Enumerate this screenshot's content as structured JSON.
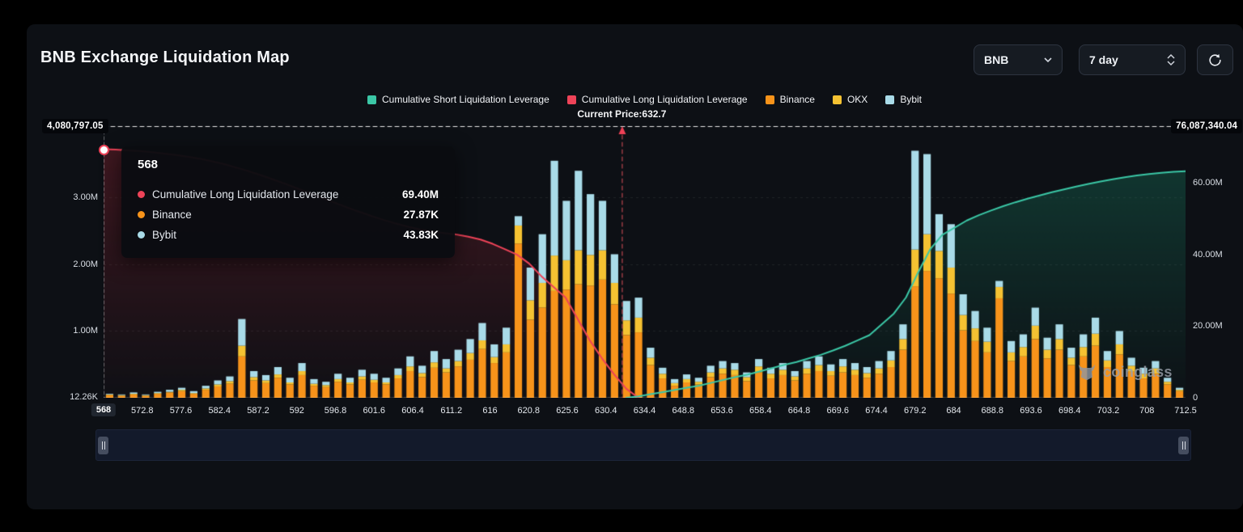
{
  "header": {
    "title": "BNB Exchange Liquidation Map"
  },
  "controls": {
    "symbol_value": "BNB",
    "timeframe_value": "7 day"
  },
  "legend": [
    {
      "label": "Cumulative Short Liquidation Leverage",
      "color": "#3bc7a6"
    },
    {
      "label": "Cumulative Long Liquidation Leverage",
      "color": "#ee4358"
    },
    {
      "label": "Binance",
      "color": "#f7931a"
    },
    {
      "label": "OKX",
      "color": "#f5c232"
    },
    {
      "label": "Bybit",
      "color": "#a9dbe8"
    }
  ],
  "current_price": {
    "label": "Current Price:632.7",
    "value": 632.7
  },
  "tooltip": {
    "title": "568",
    "rows": [
      {
        "label": "Cumulative Long Liquidation Leverage",
        "value": "69.40M",
        "color": "#ee4358"
      },
      {
        "label": "Binance",
        "value": "27.87K",
        "color": "#f7931a"
      },
      {
        "label": "Bybit",
        "value": "43.83K",
        "color": "#a9dbe8"
      }
    ]
  },
  "watermark": "coinglass",
  "chart_data": {
    "type": "bar",
    "title": "BNB Exchange Liquidation Map",
    "current_price_fraction": 0.479,
    "x_labels": [
      "568",
      "572.8",
      "577.6",
      "582.4",
      "587.2",
      "592",
      "596.8",
      "601.6",
      "606.4",
      "611.2",
      "616",
      "620.8",
      "625.6",
      "630.4",
      "634.4",
      "648.8",
      "653.6",
      "658.4",
      "664.8",
      "669.6",
      "674.4",
      "679.2",
      "684",
      "688.8",
      "693.6",
      "698.4",
      "703.2",
      "708",
      "712.5"
    ],
    "left_axis": {
      "max": 4.0808,
      "max_label": "4,080,797.05",
      "units": "M",
      "ticks": [
        {
          "value": 3.0,
          "label": "3.00M"
        },
        {
          "value": 2.0,
          "label": "2.00M"
        },
        {
          "value": 1.0,
          "label": "1.00M"
        },
        {
          "value": 0.01226,
          "label": "12.26K"
        }
      ]
    },
    "right_axis": {
      "max": 76.087,
      "max_label": "76,087,340.04",
      "units": "M",
      "ticks": [
        {
          "value": 60,
          "label": "60.00M"
        },
        {
          "value": 40,
          "label": "40.00M"
        },
        {
          "value": 20,
          "label": "20.00M"
        },
        {
          "value": 0,
          "label": "0"
        }
      ]
    },
    "bars": {
      "stack_order": [
        "binance",
        "okx",
        "bybit"
      ],
      "colors": {
        "binance": "#f7931a",
        "okx": "#f5c232",
        "bybit": "#a9dbe8"
      },
      "binance": [
        0.04,
        0.03,
        0.05,
        0.03,
        0.06,
        0.08,
        0.1,
        0.06,
        0.12,
        0.17,
        0.21,
        0.62,
        0.26,
        0.22,
        0.3,
        0.2,
        0.34,
        0.18,
        0.16,
        0.24,
        0.2,
        0.27,
        0.23,
        0.2,
        0.29,
        0.4,
        0.31,
        0.45,
        0.38,
        0.47,
        0.57,
        0.73,
        0.52,
        0.68,
        2.31,
        1.17,
        1.35,
        1.6,
        1.62,
        1.7,
        1.68,
        1.77,
        1.4,
        0.94,
        0.98,
        0.49,
        0.29,
        0.18,
        0.23,
        0.2,
        0.31,
        0.36,
        0.34,
        0.25,
        0.38,
        0.29,
        0.34,
        0.26,
        0.36,
        0.4,
        0.33,
        0.38,
        0.34,
        0.3,
        0.36,
        0.46,
        0.72,
        1.67,
        1.9,
        1.79,
        1.56,
        1.01,
        0.85,
        0.68,
        1.49,
        0.55,
        0.62,
        0.88,
        0.59,
        0.72,
        0.49,
        0.62,
        0.78,
        0.46,
        0.65,
        0.39,
        0.29,
        0.36,
        0.2,
        0.1
      ],
      "okx": [
        0.01,
        0.01,
        0.01,
        0.01,
        0.01,
        0.01,
        0.02,
        0.01,
        0.02,
        0.03,
        0.04,
        0.16,
        0.05,
        0.04,
        0.05,
        0.03,
        0.06,
        0.03,
        0.03,
        0.04,
        0.03,
        0.05,
        0.04,
        0.03,
        0.05,
        0.07,
        0.06,
        0.08,
        0.06,
        0.08,
        0.1,
        0.13,
        0.09,
        0.12,
        0.27,
        0.29,
        0.37,
        0.53,
        0.44,
        0.51,
        0.46,
        0.44,
        0.32,
        0.22,
        0.22,
        0.11,
        0.07,
        0.04,
        0.05,
        0.04,
        0.07,
        0.08,
        0.08,
        0.06,
        0.09,
        0.07,
        0.08,
        0.06,
        0.08,
        0.09,
        0.07,
        0.09,
        0.08,
        0.07,
        0.08,
        0.1,
        0.16,
        0.55,
        0.55,
        0.41,
        0.39,
        0.23,
        0.19,
        0.16,
        0.17,
        0.13,
        0.14,
        0.2,
        0.13,
        0.16,
        0.11,
        0.14,
        0.18,
        0.1,
        0.15,
        0.09,
        0.07,
        0.08,
        0.04,
        0.02
      ],
      "bybit": [
        0.01,
        0.01,
        0.02,
        0.01,
        0.02,
        0.03,
        0.03,
        0.03,
        0.04,
        0.06,
        0.07,
        0.4,
        0.09,
        0.08,
        0.11,
        0.07,
        0.12,
        0.07,
        0.05,
        0.08,
        0.07,
        0.1,
        0.09,
        0.07,
        0.1,
        0.15,
        0.11,
        0.17,
        0.14,
        0.17,
        0.21,
        0.26,
        0.19,
        0.25,
        0.14,
        0.49,
        0.73,
        1.42,
        0.89,
        1.19,
        0.91,
        0.74,
        0.43,
        0.29,
        0.3,
        0.15,
        0.09,
        0.06,
        0.07,
        0.06,
        0.1,
        0.11,
        0.1,
        0.07,
        0.11,
        0.09,
        0.1,
        0.08,
        0.11,
        0.13,
        0.1,
        0.11,
        0.1,
        0.09,
        0.11,
        0.14,
        0.22,
        1.48,
        1.2,
        0.55,
        0.65,
        0.31,
        0.26,
        0.21,
        0.09,
        0.17,
        0.19,
        0.27,
        0.18,
        0.22,
        0.15,
        0.19,
        0.24,
        0.14,
        0.2,
        0.12,
        0.09,
        0.11,
        0.06,
        0.03
      ]
    },
    "lines": {
      "cumulative_long": {
        "color": "#ee4358",
        "axis": "right",
        "values": [
          69.4,
          69.3,
          69.1,
          68.9,
          68.6,
          68.2,
          67.8,
          67.3,
          66.7,
          66.0,
          65.2,
          64.2,
          63.2,
          62.1,
          60.9,
          59.7,
          58.4,
          57.1,
          55.8,
          54.5,
          53.2,
          52.0,
          50.8,
          49.7,
          48.7,
          47.8,
          47.0,
          46.4,
          46.0,
          45.6,
          45.0,
          44.2,
          43.0,
          41.5,
          40.0,
          37.5,
          34.0,
          31.0,
          28.0,
          22.0,
          16.0,
          11.0,
          6.5,
          2.5,
          0,
          null,
          null,
          null,
          null,
          null,
          null,
          null,
          null,
          null,
          null,
          null,
          null,
          null,
          null,
          null,
          null,
          null,
          null,
          null,
          null,
          null,
          null,
          null,
          null,
          null,
          null,
          null,
          null,
          null,
          null,
          null,
          null,
          null,
          null,
          null,
          null,
          null,
          null,
          null,
          null,
          null,
          null,
          null,
          null,
          null
        ]
      },
      "cumulative_short": {
        "color": "#3bc7a6",
        "axis": "right",
        "values": [
          null,
          null,
          null,
          null,
          null,
          null,
          null,
          null,
          null,
          null,
          null,
          null,
          null,
          null,
          null,
          null,
          null,
          null,
          null,
          null,
          null,
          null,
          null,
          null,
          null,
          null,
          null,
          null,
          null,
          null,
          null,
          null,
          null,
          null,
          null,
          null,
          null,
          null,
          null,
          null,
          null,
          null,
          null,
          0,
          0.4,
          1.0,
          1.6,
          2.2,
          2.8,
          3.4,
          4.2,
          5.0,
          5.8,
          6.5,
          7.4,
          8.3,
          9.2,
          10.0,
          11.0,
          12.0,
          13.2,
          14.5,
          16.0,
          17.5,
          20.5,
          23.5,
          28.0,
          35.0,
          41.5,
          45.5,
          47.5,
          49.5,
          51.0,
          52.3,
          53.5,
          54.6,
          55.6,
          56.5,
          57.4,
          58.2,
          59.0,
          59.7,
          60.4,
          61.0,
          61.6,
          62.1,
          62.5,
          62.8,
          63.1,
          63.3
        ]
      }
    }
  }
}
